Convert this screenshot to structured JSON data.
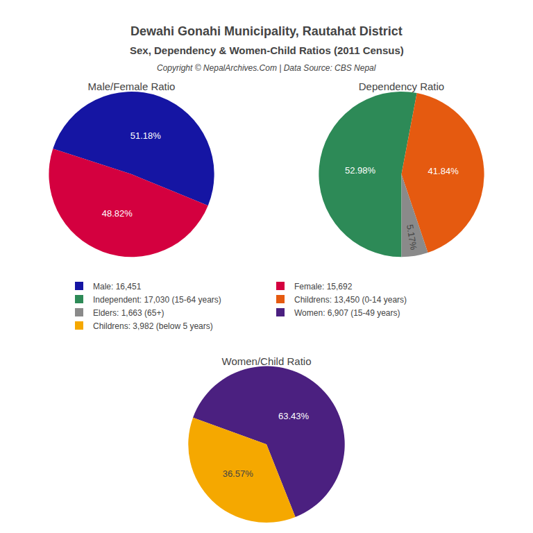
{
  "title": "Dewahi Gonahi Municipality, Rautahat District",
  "subtitle": "Sex, Dependency & Women-Child Ratios (2011 Census)",
  "annotations": [
    "Copyright © NepalArchives.Com | Data Source: CBS Nepal"
  ],
  "legend": "center",
  "chart_data": [
    {
      "type": "pie",
      "title": "Male/Female Ratio",
      "categories": [
        "Male: 16,451",
        "Female: 15,692"
      ],
      "values": [
        51.18,
        48.82
      ],
      "value_labels": [
        "51.18%",
        "48.82%"
      ],
      "data_labels": true,
      "colors": [
        "#1515a3",
        "#d4003f"
      ]
    },
    {
      "type": "pie",
      "title": "Dependency Ratio",
      "categories": [
        "Independent: 17,030 (15-64 years)",
        "Childrens: 13,450 (0-14 years)",
        "Elders: 1,663 (65+)"
      ],
      "values": [
        52.98,
        41.84,
        5.17
      ],
      "value_labels": [
        "52.98%",
        "41.84%",
        "5.17%"
      ],
      "data_labels": true,
      "colors": [
        "#2d8a57",
        "#e55a10",
        "#8a8a8a"
      ]
    },
    {
      "type": "pie",
      "title": "Women/Child Ratio",
      "categories": [
        "Women: 6,907 (15-49 years)",
        "Childrens: 3,982 (below 5 years)"
      ],
      "values": [
        63.43,
        36.57
      ],
      "value_labels": [
        "63.43%",
        "36.57%"
      ],
      "data_labels": true,
      "colors": [
        "#4b2080",
        "#f5a800"
      ]
    }
  ]
}
